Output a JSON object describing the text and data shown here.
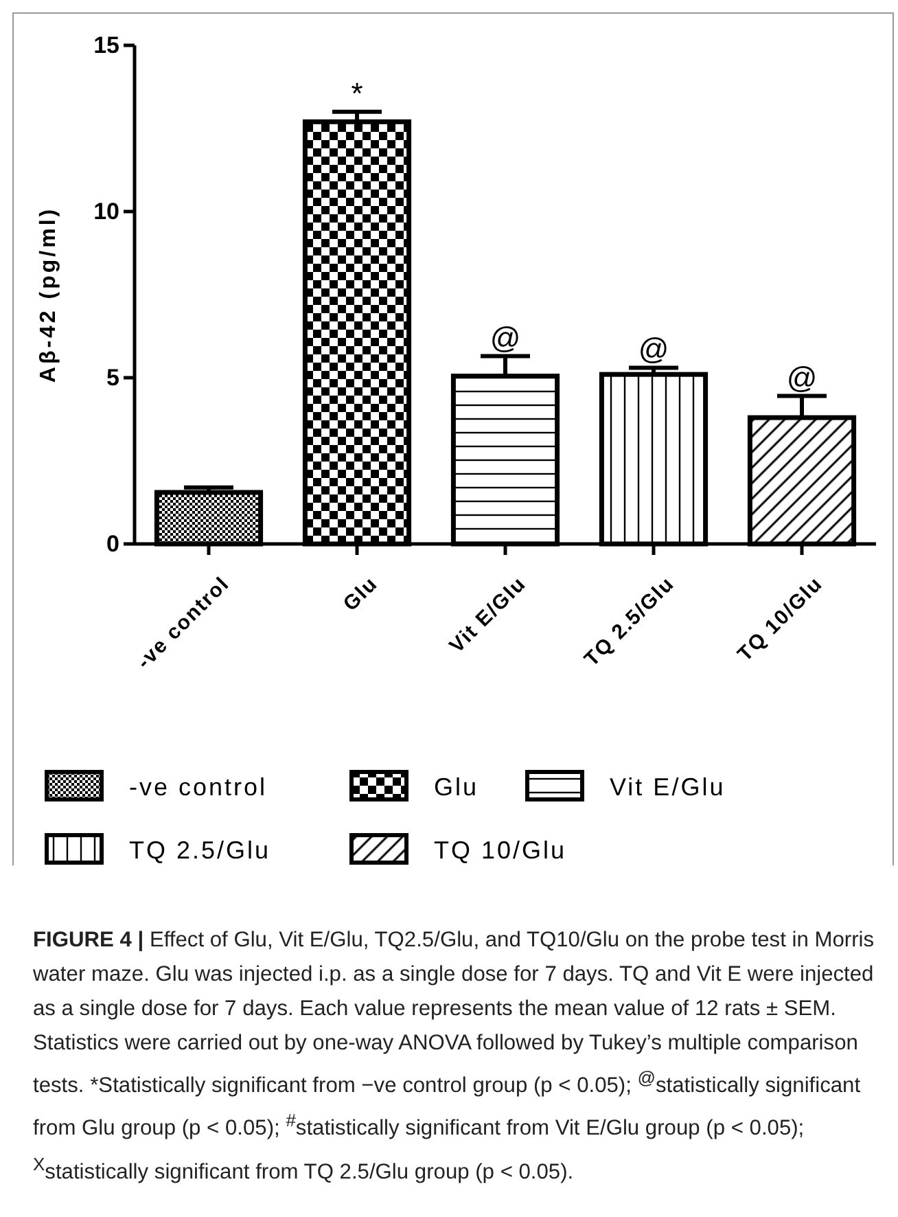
{
  "chart_data": {
    "type": "bar",
    "title": "FIGURE 4 |",
    "ylabel": "Aβ-42 (pg/ml)",
    "categories": [
      "-ve control",
      "Glu",
      "Vit E/Glu",
      "TQ 2.5/Glu",
      "TQ 10/Glu"
    ],
    "series": [
      {
        "name": "-ve control",
        "color": "#000000",
        "values": [
          1.55,
          null,
          null,
          null,
          null
        ],
        "errors": [
          0.15,
          null,
          null,
          null,
          null
        ]
      },
      {
        "name": "Glu",
        "color": "#000000",
        "values": [
          null,
          12.7,
          null,
          null,
          null
        ],
        "errors": [
          null,
          0.3,
          null,
          null,
          null
        ]
      },
      {
        "name": "Vit E/Glu",
        "color": "#000000",
        "values": [
          null,
          null,
          5.05,
          null,
          null
        ],
        "errors": [
          null,
          null,
          0.6,
          null,
          null
        ]
      },
      {
        "name": "TQ 2.5/Glu",
        "color": "#000000",
        "values": [
          null,
          null,
          null,
          5.1,
          null
        ],
        "errors": [
          null,
          null,
          null,
          0.2,
          null
        ]
      },
      {
        "name": "TQ 10/Glu",
        "color": "#000000",
        "values": [
          null,
          null,
          null,
          null,
          3.8
        ],
        "errors": [
          null,
          null,
          null,
          null,
          0.65
        ]
      }
    ],
    "ylim": [
      0,
      15
    ],
    "yticks": [
      0,
      5,
      10,
      15
    ],
    "grid": false,
    "legend": "bottom",
    "annotations": [
      {
        "text": "*",
        "x": "Glu",
        "y": 13.0
      },
      {
        "text": "@",
        "x": "Vit E/Glu",
        "y": 5.65
      },
      {
        "text": "@",
        "x": "TQ 2.5/Glu",
        "y": 5.3
      },
      {
        "text": "@",
        "x": "TQ 10/Glu",
        "y": 4.45
      },
      "Effect of Glu, Vit E/Glu, TQ2.5/Glu, and TQ10/Glu on the probe test in Morris water maze. Glu was injected i.p. as a single dose for 7 days. TQ and Vit E were injected as a single dose for 7 days. Each value represents the mean value of 12 rats ± SEM. Statistics were carried out by one-way ANOVA followed by Tukey’s multiple comparison tests. *Statistically significant from −ve control group (p < 0.05); $^{@}$statistically significant from Glu group (p < 0.05); $^{#}$statistically significant from Vit E/Glu group (p < 0.05); $^{X}$statistically significant from TQ 2.5/Glu group (p < 0.05)."
    ]
  }
}
